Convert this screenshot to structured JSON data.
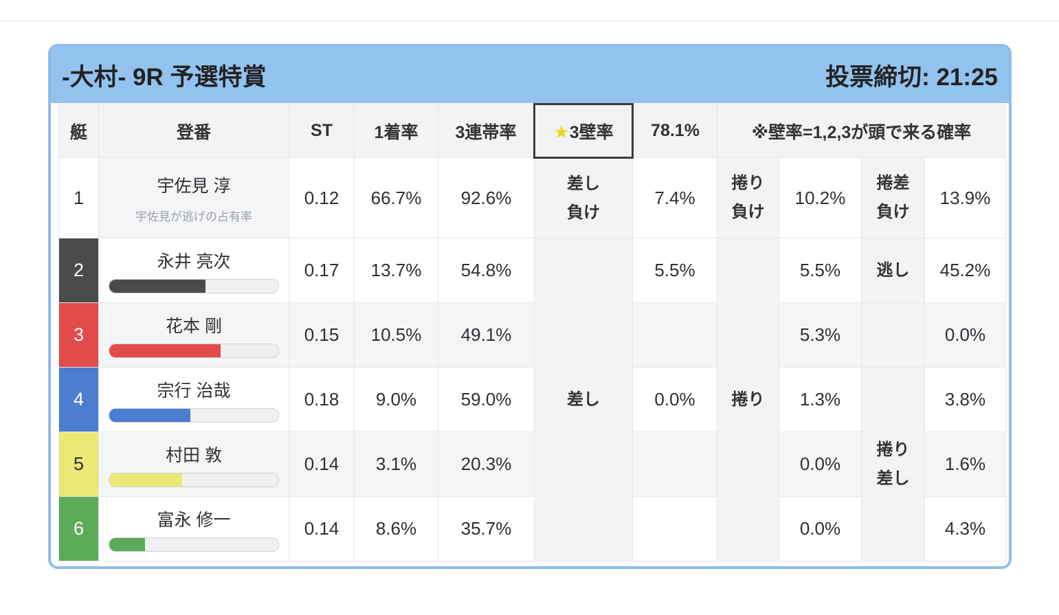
{
  "card": {
    "header": {
      "title": "-大村- 9R 予選特賞",
      "deadline": "投票締切: 21:25"
    },
    "colors": {
      "header_bg": "#92c3ee",
      "card_border": "#8fbce7",
      "highlight_bg": "#e5a63d",
      "highlight_border": "#3b3b3b",
      "star": "#f6d31f",
      "shade": "#f4f5f7",
      "label_shade": "#f2f3f5"
    },
    "table": {
      "headers": {
        "boat": "艇",
        "racer": "登番",
        "st": "ST",
        "win1": "1着率",
        "top3": "3連帯率"
      },
      "wall": {
        "star": "★",
        "label": "3壁率",
        "value": "78.1%",
        "note": "※壁率=1,2,3が頭で来る確率"
      },
      "merged_labels": {
        "sashi": "差し",
        "makuri": "捲り",
        "makurizashi": "捲り\n差し"
      },
      "rows": [
        {
          "num": "1",
          "color": "#ffffff",
          "text_color": "#2f3033",
          "name": "宇佐見 淳",
          "subtitle": "宇佐見が逃げの占有率",
          "st": "0.12",
          "win1": "66.7%",
          "top3": "92.6%",
          "label_sashi": "差し\n負け",
          "sashi": "7.4%",
          "label_makuri": "捲り\n負け",
          "makuri": "10.2%",
          "label_last": "捲差\n負け",
          "last": "13.9%"
        },
        {
          "num": "2",
          "color": "#4b4b4b",
          "text_color": "#ffffff",
          "name": "永井 亮次",
          "bar_pct": 57,
          "st": "0.17",
          "win1": "13.7%",
          "top3": "54.8%",
          "sashi": "5.5%",
          "makuri": "5.5%",
          "label_last": "逃し",
          "last": "45.2%"
        },
        {
          "num": "3",
          "color": "#e24b4b",
          "text_color": "#ffffff",
          "name": "花本 剛",
          "bar_pct": 66,
          "st": "0.15",
          "win1": "10.5%",
          "top3": "49.1%",
          "sashi": "",
          "makuri": "5.3%",
          "last": "0.0%"
        },
        {
          "num": "4",
          "color": "#4b7ece",
          "text_color": "#ffffff",
          "name": "宗行 治哉",
          "bar_pct": 48,
          "st": "0.18",
          "win1": "9.0%",
          "top3": "59.0%",
          "sashi": "0.0%",
          "makuri": "1.3%",
          "last": "3.8%"
        },
        {
          "num": "5",
          "color": "#ebe876",
          "text_color": "#2f3033",
          "name": "村田 敦",
          "bar_pct": 43,
          "st": "0.14",
          "win1": "3.1%",
          "top3": "20.3%",
          "sashi": "",
          "makuri": "0.0%",
          "last": "1.6%"
        },
        {
          "num": "6",
          "color": "#5cab59",
          "text_color": "#ffffff",
          "name": "富永 修一",
          "bar_pct": 21,
          "st": "0.14",
          "win1": "8.6%",
          "top3": "35.7%",
          "sashi": "",
          "makuri": "0.0%",
          "last": "4.3%"
        }
      ]
    }
  }
}
